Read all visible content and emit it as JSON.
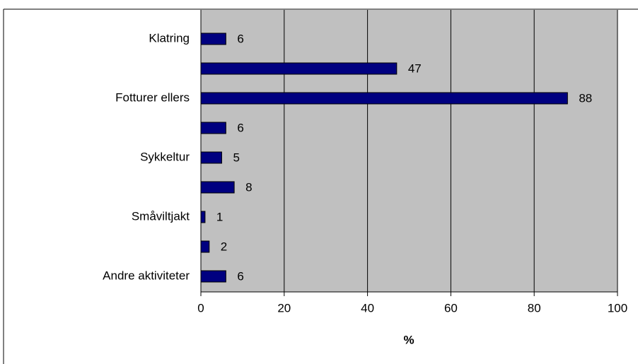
{
  "chart_data": {
    "type": "bar",
    "orientation": "horizontal",
    "categories": [
      "Klatring",
      null,
      "Fotturer ellers",
      null,
      "Sykkeltur",
      null,
      "Småviltjakt",
      null,
      "Andre aktiviteter"
    ],
    "values": [
      6,
      47,
      88,
      6,
      5,
      8,
      1,
      2,
      6
    ],
    "color": "#000080",
    "xlabel": "%",
    "xlim": [
      0,
      100
    ],
    "xticks": [
      0,
      20,
      40,
      60,
      80,
      100
    ],
    "grid": true
  }
}
